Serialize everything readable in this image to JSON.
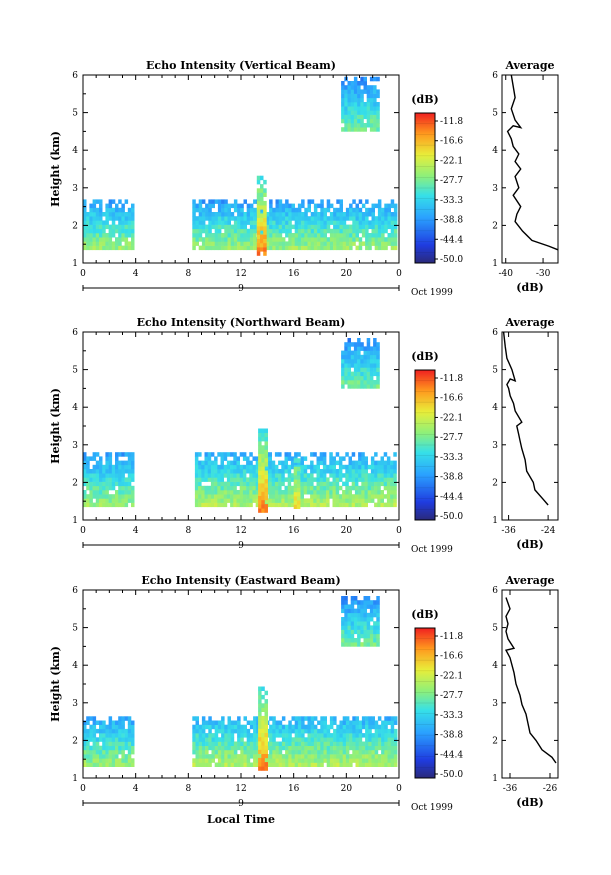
{
  "chart_data": [
    {
      "type": "heatmap",
      "title": "Echo Intensity (Vertical Beam)",
      "ylabel": "Height (km)",
      "xlabel": "",
      "ylim": [
        1,
        6
      ],
      "xlim": [
        0,
        24
      ],
      "x_ticks": [
        "0",
        "4",
        "8",
        "12",
        "16",
        "20",
        "0"
      ],
      "y_ticks": [
        "1",
        "2",
        "3",
        "4",
        "5",
        "6"
      ],
      "date_day": "9",
      "date_label": "Oct 1999",
      "grid": false,
      "layers": [
        {
          "x": [
            0,
            3.8
          ],
          "y": [
            1.35,
            2.6
          ],
          "level": 0.35
        },
        {
          "x": [
            8.3,
            23.8
          ],
          "y": [
            1.35,
            2.6
          ],
          "level": 0.35
        },
        {
          "x": [
            13.2,
            13.9
          ],
          "y": [
            1.2,
            3.3
          ],
          "level": 0.9
        },
        {
          "x": [
            19.6,
            22.5
          ],
          "y": [
            4.5,
            5.9
          ],
          "level": 0.3
        }
      ],
      "colorbar": {
        "label": "(dB)",
        "ticks": [
          "-11.8",
          "-16.6",
          "-22.1",
          "-27.7",
          "-33.3",
          "-38.8",
          "-44.4",
          "-50.0"
        ]
      },
      "profile": {
        "title": "Average",
        "xlabel": "(dB)",
        "x_ticks": [
          "-40",
          "-30"
        ],
        "xlim": [
          -41,
          -26
        ],
        "ylim": [
          1,
          6
        ],
        "y_ticks": [
          "1",
          "2",
          "3",
          "4",
          "5",
          "6"
        ],
        "x": [
          -26,
          -28.5,
          -33,
          -35.5,
          -37.5,
          -37.0,
          -36.0,
          -38.0,
          -36.5,
          -37.5,
          -36.0,
          -37.5,
          -36.5,
          -38.0,
          -38.5,
          -39.5,
          -38.0,
          -36.0,
          -37.5,
          -38.5,
          -37.5,
          -38.0,
          -38.5
        ],
        "y": [
          1.35,
          1.45,
          1.6,
          1.85,
          2.1,
          2.3,
          2.5,
          2.8,
          3.0,
          3.3,
          3.5,
          3.7,
          3.9,
          4.1,
          4.3,
          4.5,
          4.65,
          4.6,
          4.8,
          5.1,
          5.4,
          5.7,
          6.0
        ]
      }
    },
    {
      "type": "heatmap",
      "title": "Echo Intensity (Northward Beam)",
      "ylabel": "Height (km)",
      "xlabel": "",
      "ylim": [
        1,
        6
      ],
      "xlim": [
        0,
        24
      ],
      "x_ticks": [
        "0",
        "4",
        "8",
        "12",
        "16",
        "20",
        "0"
      ],
      "y_ticks": [
        "1",
        "2",
        "3",
        "4",
        "5",
        "6"
      ],
      "date_day": "9",
      "date_label": "Oct 1999",
      "grid": false,
      "layers": [
        {
          "x": [
            0,
            3.8
          ],
          "y": [
            1.35,
            2.7
          ],
          "level": 0.35
        },
        {
          "x": [
            8.5,
            23.8
          ],
          "y": [
            1.35,
            2.7
          ],
          "level": 0.38
        },
        {
          "x": [
            13.3,
            14.0
          ],
          "y": [
            1.2,
            3.4
          ],
          "level": 0.9
        },
        {
          "x": [
            16.0,
            16.4
          ],
          "y": [
            1.3,
            2.6
          ],
          "level": 0.5
        },
        {
          "x": [
            19.6,
            22.5
          ],
          "y": [
            4.5,
            5.8
          ],
          "level": 0.3
        }
      ],
      "colorbar": {
        "label": "(dB)",
        "ticks": [
          "-11.8",
          "-16.6",
          "-22.1",
          "-27.7",
          "-33.3",
          "-38.8",
          "-44.4",
          "-50.0"
        ]
      },
      "profile": {
        "title": "Average",
        "xlabel": "(dB)",
        "x_ticks": [
          "-36",
          "-24"
        ],
        "xlim": [
          -38,
          -21
        ],
        "ylim": [
          1,
          6
        ],
        "y_ticks": [
          "1",
          "2",
          "3",
          "4",
          "5",
          "6"
        ],
        "x": [
          -24,
          -25.5,
          -28,
          -28.5,
          -30.5,
          -31.0,
          -32.0,
          -32.5,
          -33.0,
          -33.5,
          -32.0,
          -34.0,
          -34.5,
          -35.5,
          -36.0,
          -36.5,
          -35.5,
          -34.0,
          -35.0,
          -36.5,
          -37.0,
          -37.5
        ],
        "y": [
          1.4,
          1.55,
          1.8,
          2.0,
          2.3,
          2.6,
          2.9,
          3.1,
          3.3,
          3.5,
          3.6,
          3.9,
          4.1,
          4.3,
          4.5,
          4.6,
          4.75,
          4.7,
          5.0,
          5.3,
          5.6,
          6.0
        ]
      }
    },
    {
      "type": "heatmap",
      "title": "Echo Intensity (Eastward Beam)",
      "ylabel": "Height (km)",
      "xlabel": "Local Time",
      "ylim": [
        1,
        6
      ],
      "xlim": [
        0,
        24
      ],
      "x_ticks": [
        "0",
        "4",
        "8",
        "12",
        "16",
        "20",
        "0"
      ],
      "y_ticks": [
        "1",
        "2",
        "3",
        "4",
        "5",
        "6"
      ],
      "date_day": "9",
      "date_label": "Oct 1999",
      "grid": false,
      "layers": [
        {
          "x": [
            0,
            3.8
          ],
          "y": [
            1.3,
            2.6
          ],
          "level": 0.35
        },
        {
          "x": [
            8.3,
            23.8
          ],
          "y": [
            1.3,
            2.6
          ],
          "level": 0.38
        },
        {
          "x": [
            13.3,
            14.0
          ],
          "y": [
            1.2,
            3.4
          ],
          "level": 0.9
        },
        {
          "x": [
            19.6,
            22.5
          ],
          "y": [
            4.5,
            5.8
          ],
          "level": 0.3
        }
      ],
      "colorbar": {
        "label": "(dB)",
        "ticks": [
          "-11.8",
          "-16.6",
          "-22.1",
          "-27.7",
          "-33.3",
          "-38.8",
          "-44.4",
          "-50.0"
        ]
      },
      "profile": {
        "title": "Average",
        "xlabel": "(dB)",
        "x_ticks": [
          "-36",
          "-26"
        ],
        "xlim": [
          -38,
          -24
        ],
        "ylim": [
          1,
          6
        ],
        "y_ticks": [
          "1",
          "2",
          "3",
          "4",
          "5",
          "6"
        ],
        "x": [
          -24.5,
          -25.5,
          -28,
          -29.5,
          -31.0,
          -31.5,
          -32.0,
          -33.0,
          -33.5,
          -34.5,
          -35.0,
          -35.5,
          -36.0,
          -36.5,
          -37.0,
          -35.0,
          -36.5,
          -37.0,
          -36.5,
          -37.0,
          -36.0,
          -37.0
        ],
        "y": [
          1.4,
          1.55,
          1.75,
          2.0,
          2.2,
          2.45,
          2.7,
          2.95,
          3.2,
          3.5,
          3.8,
          4.0,
          4.2,
          4.3,
          4.4,
          4.45,
          4.7,
          4.9,
          5.1,
          5.3,
          5.5,
          5.8
        ]
      }
    }
  ]
}
